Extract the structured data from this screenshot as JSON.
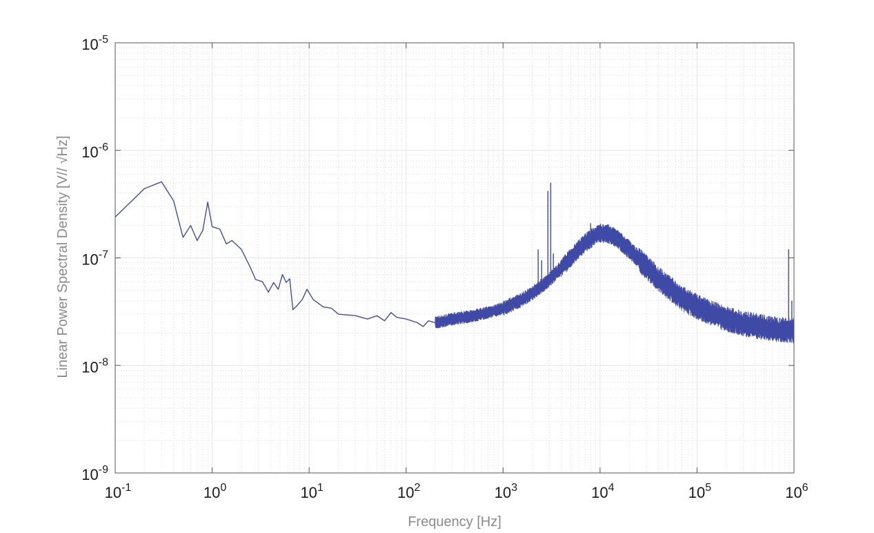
{
  "chart_data": {
    "type": "line",
    "title": "",
    "xlabel": "Frequency [Hz]",
    "ylabel": "Linear Power Spectral Density [V// √Hz]",
    "x_scale": "log",
    "y_scale": "log",
    "xlim": [
      0.1,
      1000000
    ],
    "ylim": [
      1e-09,
      1e-05
    ],
    "grid": true,
    "minor_grid": true,
    "legend": "none",
    "x_ticks": [
      {
        "value": 0.1,
        "base": "10",
        "exp": "-1"
      },
      {
        "value": 1,
        "base": "10",
        "exp": "0"
      },
      {
        "value": 10,
        "base": "10",
        "exp": "1"
      },
      {
        "value": 100,
        "base": "10",
        "exp": "2"
      },
      {
        "value": 1000,
        "base": "10",
        "exp": "3"
      },
      {
        "value": 10000,
        "base": "10",
        "exp": "4"
      },
      {
        "value": 100000,
        "base": "10",
        "exp": "5"
      },
      {
        "value": 1000000,
        "base": "10",
        "exp": "6"
      }
    ],
    "y_ticks": [
      {
        "value": 1e-09,
        "base": "10",
        "exp": "-9"
      },
      {
        "value": 1e-08,
        "base": "10",
        "exp": "-8"
      },
      {
        "value": 1e-07,
        "base": "10",
        "exp": "-7"
      },
      {
        "value": 1e-06,
        "base": "10",
        "exp": "-6"
      },
      {
        "value": 1e-05,
        "base": "10",
        "exp": "-5"
      }
    ],
    "series": [
      {
        "color": "#3f4aa6",
        "points": [
          [
            0.1,
            2.4e-07
          ],
          [
            0.2,
            4.4e-07
          ],
          [
            0.3,
            5.1e-07
          ],
          [
            0.4,
            3.4e-07
          ],
          [
            0.5,
            1.55e-07
          ],
          [
            0.6,
            2e-07
          ],
          [
            0.7,
            1.45e-07
          ],
          [
            0.8,
            1.8e-07
          ],
          [
            0.9,
            3.3e-07
          ],
          [
            1.0,
            1.95e-07
          ],
          [
            1.2,
            1.85e-07
          ],
          [
            1.4,
            1.35e-07
          ],
          [
            1.6,
            1.45e-07
          ],
          [
            2.0,
            1.2e-07
          ],
          [
            2.5,
            8e-08
          ],
          [
            2.8,
            6.3e-08
          ],
          [
            3.3,
            6e-08
          ],
          [
            3.8,
            4.8e-08
          ],
          [
            4.3,
            5.9e-08
          ],
          [
            4.8,
            5.1e-08
          ],
          [
            5.3,
            7e-08
          ],
          [
            5.8,
            5.9e-08
          ],
          [
            6.3,
            6.4e-08
          ],
          [
            6.8,
            3.3e-08
          ],
          [
            7.5,
            3.6e-08
          ],
          [
            8.5,
            4.1e-08
          ],
          [
            9.5,
            5.1e-08
          ],
          [
            11,
            4.1e-08
          ],
          [
            14,
            3.5e-08
          ],
          [
            17,
            3.4e-08
          ],
          [
            20,
            3e-08
          ],
          [
            30,
            2.9e-08
          ],
          [
            40,
            2.7e-08
          ],
          [
            50,
            2.9e-08
          ],
          [
            60,
            2.6e-08
          ],
          [
            70,
            3.1e-08
          ],
          [
            80,
            2.8e-08
          ],
          [
            100,
            2.7e-08
          ],
          [
            130,
            2.5e-08
          ],
          [
            150,
            2.3e-08
          ],
          [
            170,
            2.6e-08
          ],
          [
            200,
            2.5e-08
          ],
          [
            250,
            2.6e-08
          ],
          [
            300,
            2.7e-08
          ],
          [
            400,
            2.8e-08
          ],
          [
            500,
            2.9e-08
          ],
          [
            700,
            3.1e-08
          ],
          [
            1000,
            3.4e-08
          ],
          [
            1500,
            4e-08
          ],
          [
            2000,
            4.7e-08
          ],
          [
            2500,
            5.5e-08
          ],
          [
            3000,
            6.2e-08
          ],
          [
            4000,
            8.2e-08
          ],
          [
            5000,
            1e-07
          ],
          [
            6000,
            1.2e-07
          ],
          [
            7000,
            1.38e-07
          ],
          [
            8000,
            1.5e-07
          ],
          [
            9000,
            1.62e-07
          ],
          [
            10000,
            1.7e-07
          ],
          [
            12000,
            1.68e-07
          ],
          [
            15000,
            1.5e-07
          ],
          [
            20000,
            1.2e-07
          ],
          [
            30000,
            8.2e-08
          ],
          [
            40000,
            6.4e-08
          ],
          [
            50000,
            5.4e-08
          ],
          [
            70000,
            4.2e-08
          ],
          [
            100000,
            3.5e-08
          ],
          [
            150000,
            3e-08
          ],
          [
            200000,
            2.7e-08
          ],
          [
            300000,
            2.45e-08
          ],
          [
            500000,
            2.25e-08
          ],
          [
            700000,
            2.15e-08
          ],
          [
            1000000,
            2.1e-08
          ]
        ],
        "spikes": [
          [
            2900,
            4.2e-07
          ],
          [
            3100,
            5e-07
          ],
          [
            2300,
            1.2e-07
          ],
          [
            2500,
            9.5e-08
          ],
          [
            3300,
            1.1e-07
          ],
          [
            8000,
            2.1e-07
          ],
          [
            880000,
            1.2e-07
          ],
          [
            950000,
            4e-08
          ]
        ]
      }
    ]
  }
}
